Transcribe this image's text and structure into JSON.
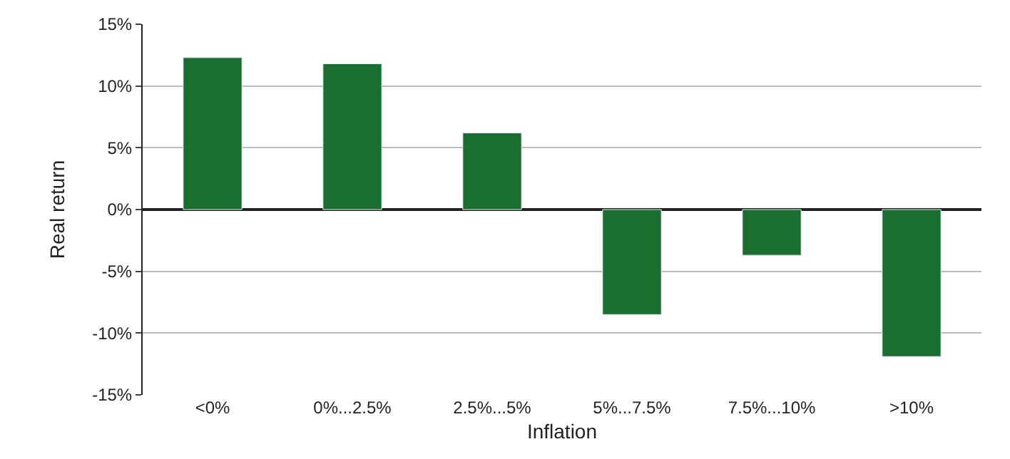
{
  "chart_data": {
    "type": "bar",
    "xlabel": "Inflation",
    "ylabel": "Real return",
    "categories": [
      "<0%",
      "0%...2.5%",
      "2.5%...5%",
      "5%...7.5%",
      "7.5%...10%",
      ">10%"
    ],
    "values": [
      12.3,
      11.8,
      6.2,
      -8.5,
      -3.7,
      -11.9
    ],
    "color": "#1a6e30",
    "ylim": [
      -15,
      15
    ],
    "yticks": [
      {
        "value": -15,
        "label": "-15%"
      },
      {
        "value": -10,
        "label": "-10%"
      },
      {
        "value": -5,
        "label": "-5%"
      },
      {
        "value": 0,
        "label": "0%"
      },
      {
        "value": 5,
        "label": "5%"
      },
      {
        "value": 10,
        "label": "10%"
      },
      {
        "value": 15,
        "label": "15%"
      }
    ],
    "grid": "y"
  }
}
